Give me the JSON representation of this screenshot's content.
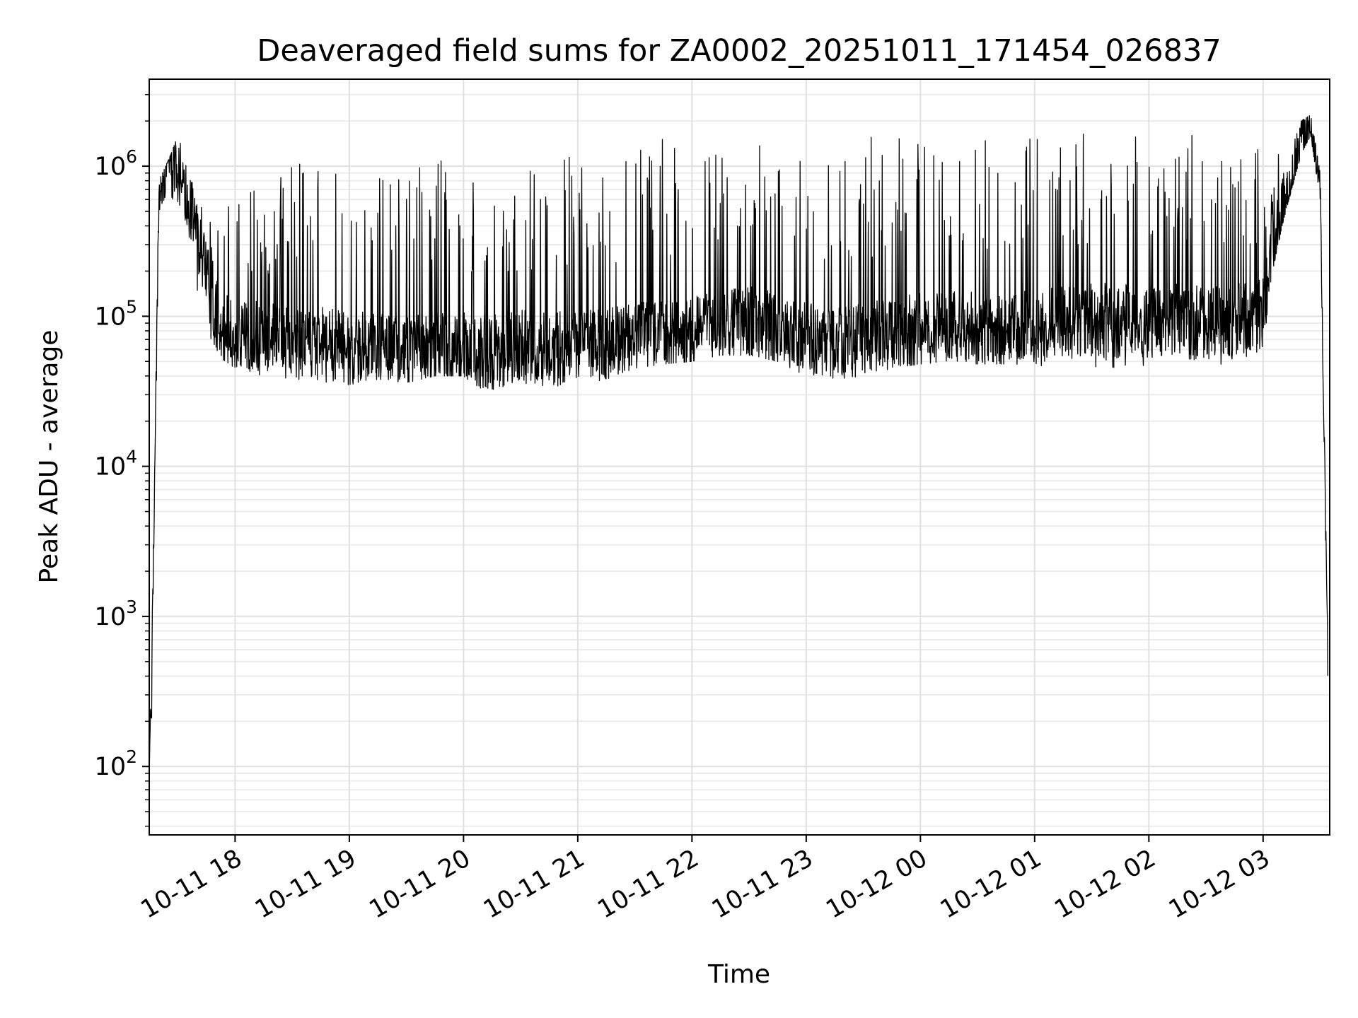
{
  "chart_data": {
    "type": "line",
    "title": "Deaveraged field sums for ZA0002_20251011_171454_026837",
    "xlabel": "Time",
    "ylabel": "Peak ADU - average",
    "yscale": "log",
    "xlim": [
      "2025-10-11 17:14:54",
      "2025-10-12 03:35:00"
    ],
    "ylim": [
      35,
      3800000
    ],
    "grid": true,
    "legend": "none",
    "series_color": "#000000",
    "x_ticks": [
      {
        "t": "2025-10-11 18:00",
        "label": "10-11 18"
      },
      {
        "t": "2025-10-11 19:00",
        "label": "10-11 19"
      },
      {
        "t": "2025-10-11 20:00",
        "label": "10-11 20"
      },
      {
        "t": "2025-10-11 21:00",
        "label": "10-11 21"
      },
      {
        "t": "2025-10-11 22:00",
        "label": "10-11 22"
      },
      {
        "t": "2025-10-11 23:00",
        "label": "10-11 23"
      },
      {
        "t": "2025-10-12 00:00",
        "label": "10-12 00"
      },
      {
        "t": "2025-10-12 01:00",
        "label": "10-12 01"
      },
      {
        "t": "2025-10-12 02:00",
        "label": "10-12 02"
      },
      {
        "t": "2025-10-12 03:00",
        "label": "10-12 03"
      }
    ],
    "y_ticks": [
      {
        "value": 100,
        "base": "10",
        "exp": "2"
      },
      {
        "value": 1000,
        "base": "10",
        "exp": "3"
      },
      {
        "value": 10000,
        "base": "10",
        "exp": "4"
      },
      {
        "value": 100000,
        "base": "10",
        "exp": "5"
      },
      {
        "value": 1000000,
        "base": "10",
        "exp": "6"
      }
    ],
    "series": [
      {
        "x": [
          "2025-10-11 17:15",
          "2025-10-11 17:16",
          "2025-10-11 17:18",
          "2025-10-11 17:20",
          "2025-10-11 17:25",
          "2025-10-11 17:30",
          "2025-10-11 17:35",
          "2025-10-11 17:40",
          "2025-10-11 17:45",
          "2025-10-11 17:50",
          "2025-10-11 17:55",
          "2025-10-11 18:00",
          "2025-10-11 18:15",
          "2025-10-11 18:30",
          "2025-10-11 18:45",
          "2025-10-11 19:00",
          "2025-10-11 19:15",
          "2025-10-11 19:30",
          "2025-10-11 19:45",
          "2025-10-11 20:00",
          "2025-10-11 20:15",
          "2025-10-11 20:30",
          "2025-10-11 20:45",
          "2025-10-11 21:00",
          "2025-10-11 21:15",
          "2025-10-11 21:30",
          "2025-10-11 21:45",
          "2025-10-11 22:00",
          "2025-10-11 22:15",
          "2025-10-11 22:30",
          "2025-10-11 22:45",
          "2025-10-11 23:00",
          "2025-10-11 23:15",
          "2025-10-11 23:30",
          "2025-10-11 23:45",
          "2025-10-12 00:00",
          "2025-10-12 00:15",
          "2025-10-12 00:30",
          "2025-10-12 00:45",
          "2025-10-12 01:00",
          "2025-10-12 01:15",
          "2025-10-12 01:30",
          "2025-10-12 01:45",
          "2025-10-12 02:00",
          "2025-10-12 02:15",
          "2025-10-12 02:30",
          "2025-10-12 02:45",
          "2025-10-12 03:00",
          "2025-10-12 03:05",
          "2025-10-12 03:10",
          "2025-10-12 03:15",
          "2025-10-12 03:20",
          "2025-10-12 03:25",
          "2025-10-12 03:30",
          "2025-10-12 03:34"
        ],
        "y": [
          130,
          210,
          12000,
          600000,
          850000,
          1000000,
          600000,
          350000,
          200000,
          100000,
          80000,
          75000,
          70000,
          68000,
          65000,
          60000,
          62000,
          60000,
          62000,
          60000,
          58000,
          62000,
          60000,
          62000,
          65000,
          70000,
          72000,
          75000,
          85000,
          90000,
          80000,
          70000,
          65000,
          68000,
          75000,
          80000,
          85000,
          82000,
          80000,
          85000,
          90000,
          95000,
          92000,
          95000,
          92000,
          90000,
          92000,
          100000,
          300000,
          500000,
          800000,
          1500000,
          1900000,
          700000,
          400
        ],
        "spike_envelope": {
          "low": [
            100,
            150,
            10000,
            500000,
            700000,
            500000,
            400000,
            150000,
            80000,
            55000,
            50000,
            45000,
            40000,
            38000,
            36000,
            35000,
            38000,
            36000,
            40000,
            40000,
            28000,
            32000,
            30000,
            35000,
            38000,
            45000,
            48000,
            50000,
            55000,
            55000,
            50000,
            40000,
            38000,
            40000,
            45000,
            48000,
            50000,
            48000,
            48000,
            45000,
            45000,
            45000,
            45000,
            45000,
            45000,
            45000,
            50000,
            60000,
            200000,
            400000,
            700000,
            1200000,
            1600000,
            600000,
            380
          ],
          "high": [
            200,
            400,
            20000,
            800000,
            1100000,
            1600000,
            1000000,
            600000,
            500000,
            500000,
            600000,
            600000,
            800000,
            1000000,
            1200000,
            800000,
            900000,
            1000000,
            1100000,
            1200000,
            1000000,
            1100000,
            1200000,
            1300000,
            1400000,
            1500000,
            1550000,
            1600000,
            1700000,
            1650000,
            1600000,
            1600000,
            1600000,
            1650000,
            1650000,
            1650000,
            1650000,
            1650000,
            1650000,
            1650000,
            1650000,
            1700000,
            1650000,
            1700000,
            1650000,
            1650000,
            1650000,
            1600000,
            1300000,
            1200000,
            1300000,
            2000000,
            2200000,
            900000,
            700
          ]
        }
      }
    ]
  }
}
